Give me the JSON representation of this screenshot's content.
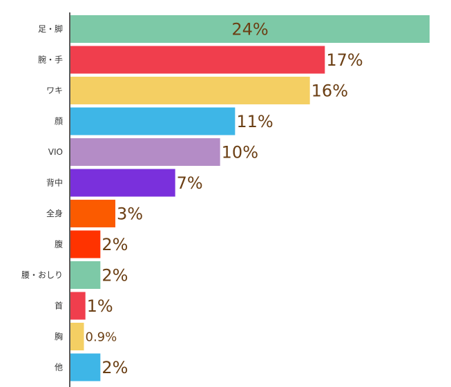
{
  "chart_data": {
    "type": "bar",
    "orientation": "horizontal",
    "title": "",
    "xlabel": "",
    "ylabel": "",
    "xlim": [
      0,
      24
    ],
    "grid": false,
    "legend": "none",
    "categories": [
      "足・脚",
      "腕・手",
      "ワキ",
      "顔",
      "VIO",
      "背中",
      "全身",
      "腹",
      "腰・おしり",
      "首",
      "胸",
      "他"
    ],
    "values": [
      24,
      17,
      16,
      11,
      10,
      7,
      3,
      2,
      2,
      1,
      0.9,
      2
    ],
    "data_labels": [
      "24%",
      "17%",
      "16%",
      "11%",
      "10%",
      "7%",
      "3%",
      "2%",
      "2%",
      "1%",
      "0.9%",
      "2%"
    ],
    "colors": [
      "#7dc9a7",
      "#f03e4d",
      "#f4cf63",
      "#3eb6e7",
      "#b48cc6",
      "#7a30dc",
      "#fb5b00",
      "#ff3300",
      "#7dc9a7",
      "#f03e4d",
      "#f4cf63",
      "#3eb6e7"
    ]
  }
}
